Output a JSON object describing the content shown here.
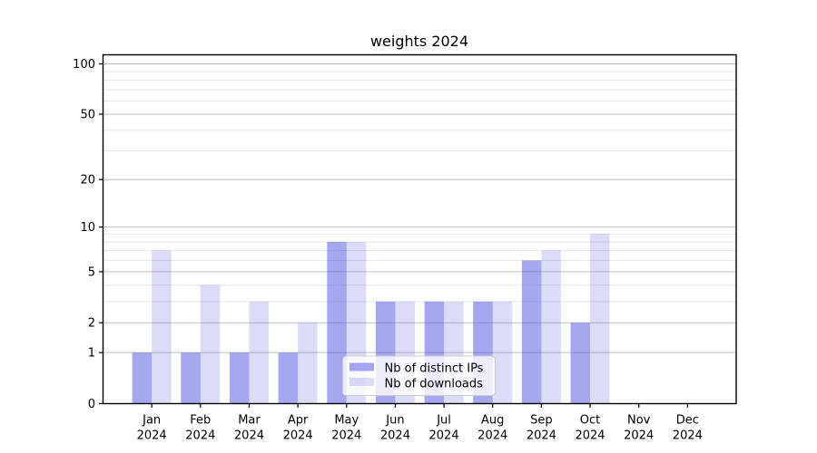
{
  "chart_data": {
    "type": "bar",
    "title": "weights 2024",
    "categories": [
      "Jan 2024",
      "Feb 2024",
      "Mar 2024",
      "Apr 2024",
      "May 2024",
      "Jun 2024",
      "Jul 2024",
      "Aug 2024",
      "Sep 2024",
      "Oct 2024",
      "Nov 2024",
      "Dec 2024"
    ],
    "series": [
      {
        "name": "Nb of distinct IPs",
        "values": [
          1,
          1,
          1,
          1,
          8,
          3,
          3,
          3,
          6,
          2,
          0,
          0
        ],
        "fill": "#5050e2",
        "fill_opacity": 0.5
      },
      {
        "name": "Nb of downloads",
        "values": [
          7,
          4,
          3,
          2,
          8,
          3,
          3,
          3,
          7,
          9,
          0,
          0
        ],
        "fill": "#5050e2",
        "fill_opacity": 0.2
      }
    ],
    "xlabel": "",
    "ylabel": "",
    "yscale": "log1p",
    "ylim": [
      0,
      113
    ],
    "yticks": [
      0,
      1,
      2,
      5,
      10,
      20,
      50,
      100
    ],
    "yminorticks": [
      3,
      4,
      6,
      7,
      8,
      9,
      30,
      40,
      60,
      70,
      80,
      90
    ],
    "grid": true,
    "legend": {
      "position": "lower center",
      "entries": [
        "Nb of distinct IPs",
        "Nb of downloads"
      ]
    },
    "colors": {
      "bar_base": "#5050e2",
      "grid_major": "#c2c2c2",
      "grid_minor": "#e7e7e7",
      "spine": "#000000",
      "legend_border": "#cccccc",
      "legend_bg": "#ffffff",
      "plot_bg": "#ffffff"
    }
  }
}
